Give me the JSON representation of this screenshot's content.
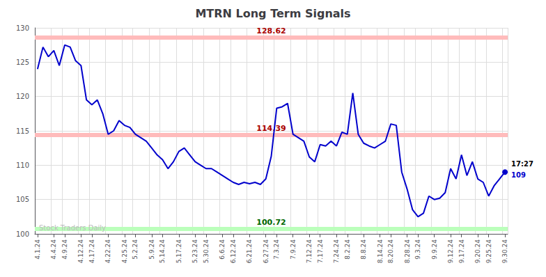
{
  "chart_data": {
    "type": "line",
    "title": "MTRN Long Term Signals",
    "color": "#0000cc",
    "categories": [
      "4.1.24",
      null,
      null,
      "4.4.24",
      null,
      "4.9.24",
      null,
      null,
      "4.12.24",
      null,
      "4.17.24",
      null,
      null,
      "4.22.24",
      null,
      null,
      "4.25.24",
      null,
      "5.2.24",
      null,
      null,
      "5.9.24",
      null,
      "5.14.24",
      null,
      null,
      "5.17.24",
      null,
      null,
      "5.23.24",
      null,
      "5.30.24",
      null,
      null,
      "6.6.24",
      null,
      "6.12.24",
      null,
      null,
      "6.21.24",
      null,
      null,
      "6.27.24",
      null,
      "7.3.24",
      null,
      null,
      "7.9.24",
      null,
      null,
      "7.12.24",
      null,
      "7.17.24",
      null,
      null,
      "7.24.24",
      null,
      "8.2.24",
      null,
      null,
      "8.8.24",
      null,
      null,
      "8.14.24",
      null,
      "8.20.24",
      null,
      null,
      "8.28.24",
      null,
      "9.3.24",
      null,
      null,
      "9.9.24",
      null,
      null,
      "9.12.24",
      null,
      "9.17.24",
      null,
      null,
      "9.20.24",
      null,
      "9.25.24",
      null,
      null,
      "9.30.24"
    ],
    "values": [
      124.0,
      127.2,
      125.8,
      126.7,
      124.5,
      127.5,
      127.2,
      125.2,
      124.5,
      119.5,
      118.8,
      119.5,
      117.5,
      114.5,
      115.0,
      116.5,
      115.8,
      115.5,
      114.5,
      114.0,
      113.5,
      112.5,
      111.5,
      110.8,
      109.5,
      110.5,
      112.0,
      112.5,
      111.5,
      110.5,
      110.0,
      109.5,
      109.5,
      109.0,
      108.5,
      108.0,
      107.5,
      107.2,
      107.5,
      107.3,
      107.5,
      107.2,
      108.0,
      111.3,
      118.3,
      118.5,
      119.0,
      114.5,
      114.0,
      113.5,
      111.2,
      110.5,
      113.0,
      112.8,
      113.5,
      112.8,
      114.8,
      114.5,
      120.5,
      114.5,
      113.2,
      112.8,
      112.5,
      113.0,
      113.5,
      116.0,
      115.8,
      109.0,
      106.5,
      103.5,
      102.5,
      103.0,
      105.5,
      105.0,
      105.2,
      106.0,
      109.5,
      108.0,
      111.5,
      108.5,
      110.5,
      108.0,
      107.5,
      105.5,
      107.0,
      108.0,
      109.0
    ],
    "ylim": [
      100,
      130
    ],
    "yticks": [
      100,
      105,
      110,
      115,
      120,
      125,
      130
    ],
    "grid": true,
    "hlines": [
      {
        "value": 128.62,
        "color": "#ffbbbb",
        "label_color": "#aa0000"
      },
      {
        "value": 114.39,
        "color": "#ffbbbb",
        "label_color": "#aa0000"
      },
      {
        "value": 100.72,
        "color": "#bbffbb",
        "label_color": "#006600"
      }
    ],
    "annotations": [
      {
        "text": "17:27",
        "color": "#000000"
      },
      {
        "text": "109",
        "color": "#0000cc"
      },
      {
        "text": "Stock Traders Daily",
        "color": "#bbbbbb"
      }
    ]
  }
}
